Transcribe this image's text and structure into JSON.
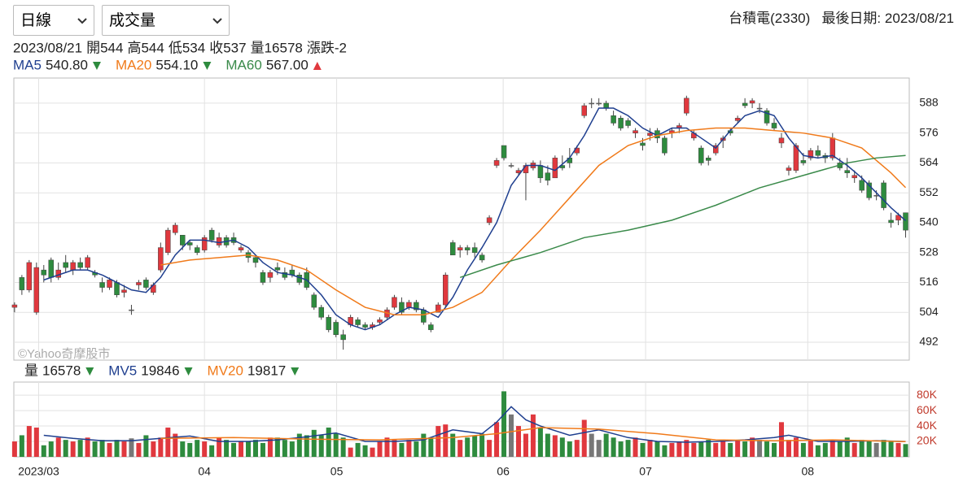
{
  "header": {
    "interval": "日線",
    "indicator": "成交量",
    "stock": "台積電(2330)",
    "last_date_label": "最後日期:",
    "last_date": "2023/08/21"
  },
  "chart_data": [
    {
      "type": "candlestick",
      "date": "2023/08/21",
      "info": [
        {
          "label": "開",
          "value": 544
        },
        {
          "label": "高",
          "value": 544
        },
        {
          "label": "低",
          "value": 534
        },
        {
          "label": "收",
          "value": 537
        },
        {
          "label": "量",
          "value": 16578
        },
        {
          "label": "漲跌",
          "value": -2
        }
      ],
      "watermark": "©Yahoo奇摩股市",
      "colors": {
        "up": "#e0383e",
        "down": "#2e8b3e",
        "flat": "#777777"
      },
      "ohlc": [
        [
          506,
          508,
          504,
          507
        ],
        [
          518,
          519,
          511,
          513
        ],
        [
          513,
          525,
          512,
          524
        ],
        [
          504,
          524,
          503,
          522
        ],
        [
          521,
          523,
          516,
          519
        ],
        [
          525,
          526,
          516,
          518
        ],
        [
          518,
          524,
          517,
          521
        ],
        [
          524,
          527,
          520,
          522
        ],
        [
          521,
          525,
          519,
          524
        ],
        [
          524,
          526,
          521,
          522
        ],
        [
          522,
          527,
          521,
          526
        ],
        [
          520,
          521,
          518,
          519
        ],
        [
          516,
          518,
          512,
          514
        ],
        [
          514,
          518,
          513,
          517
        ],
        [
          516,
          517,
          510,
          511
        ],
        [
          512,
          515,
          510,
          513
        ],
        [
          505,
          507,
          503,
          505
        ],
        [
          515,
          517,
          513,
          516
        ],
        [
          517,
          518,
          513,
          514
        ],
        [
          512,
          516,
          511,
          515
        ],
        [
          521,
          532,
          520,
          530
        ],
        [
          528,
          538,
          527,
          537
        ],
        [
          536,
          540,
          535,
          539
        ],
        [
          535,
          535,
          529,
          531
        ],
        [
          532,
          533,
          529,
          531
        ],
        [
          530,
          531,
          527,
          528
        ],
        [
          529,
          535,
          528,
          534
        ],
        [
          537,
          538,
          532,
          533
        ],
        [
          531,
          536,
          530,
          534
        ],
        [
          534,
          535,
          530,
          531
        ],
        [
          534,
          536,
          531,
          532
        ],
        [
          529,
          531,
          528,
          530
        ],
        [
          528,
          529,
          524,
          526
        ],
        [
          526,
          527,
          522,
          524
        ],
        [
          520,
          521,
          515,
          516
        ],
        [
          518,
          521,
          516,
          520
        ],
        [
          522,
          524,
          519,
          521
        ],
        [
          520,
          522,
          517,
          518
        ],
        [
          521,
          523,
          518,
          519
        ],
        [
          519,
          520,
          515,
          516
        ],
        [
          520,
          522,
          513,
          514
        ],
        [
          511,
          512,
          505,
          506
        ],
        [
          506,
          507,
          501,
          502
        ],
        [
          502,
          503,
          496,
          497
        ],
        [
          500,
          501,
          494,
          495
        ],
        [
          495,
          497,
          489,
          493
        ],
        [
          499,
          503,
          498,
          502
        ],
        [
          501,
          502,
          498,
          499
        ],
        [
          499,
          500,
          497,
          498
        ],
        [
          498,
          500,
          497,
          499
        ],
        [
          500,
          502,
          499,
          501
        ],
        [
          502,
          506,
          501,
          505
        ],
        [
          506,
          511,
          505,
          510
        ],
        [
          508,
          510,
          503,
          504
        ],
        [
          506,
          509,
          505,
          508
        ],
        [
          508,
          509,
          504,
          505
        ],
        [
          505,
          506,
          499,
          500
        ],
        [
          499,
          500,
          496,
          497
        ],
        [
          504,
          508,
          504,
          507
        ],
        [
          507,
          520,
          506,
          519
        ],
        [
          532,
          533,
          527,
          527
        ],
        [
          529,
          531,
          526,
          530
        ],
        [
          530,
          531,
          527,
          529
        ],
        [
          530,
          532,
          526,
          528
        ],
        [
          527,
          528,
          524,
          525
        ],
        [
          540,
          543,
          539,
          542
        ],
        [
          563,
          566,
          562,
          565
        ],
        [
          571,
          571,
          565,
          566
        ],
        [
          563,
          564,
          562,
          563
        ],
        [
          560,
          562,
          559,
          561
        ],
        [
          560,
          564,
          549,
          563
        ],
        [
          562,
          565,
          561,
          564
        ],
        [
          563,
          565,
          556,
          558
        ],
        [
          560,
          563,
          555,
          557
        ],
        [
          558,
          567,
          558,
          566
        ],
        [
          563,
          567,
          561,
          562
        ],
        [
          566,
          570,
          562,
          564
        ],
        [
          568,
          571,
          567,
          570
        ],
        [
          583,
          588,
          582,
          587
        ],
        [
          588,
          590,
          586,
          588
        ],
        [
          588,
          590,
          587,
          588
        ],
        [
          588,
          589,
          585,
          586
        ],
        [
          583,
          585,
          579,
          580
        ],
        [
          582,
          583,
          577,
          578
        ],
        [
          581,
          582,
          578,
          579
        ],
        [
          576,
          578,
          574,
          577
        ],
        [
          572,
          574,
          569,
          571
        ],
        [
          575,
          578,
          573,
          576
        ],
        [
          577,
          578,
          572,
          574
        ],
        [
          574,
          575,
          567,
          568
        ],
        [
          576,
          578,
          574,
          577
        ],
        [
          578,
          580,
          576,
          579
        ],
        [
          584,
          591,
          583,
          590
        ],
        [
          574,
          577,
          573,
          576
        ],
        [
          570,
          571,
          563,
          564
        ],
        [
          566,
          567,
          563,
          565
        ],
        [
          568,
          572,
          567,
          571
        ],
        [
          573,
          575,
          570,
          574
        ],
        [
          577,
          578,
          575,
          576
        ],
        [
          581,
          583,
          580,
          582
        ],
        [
          588,
          590,
          586,
          587
        ],
        [
          588,
          590,
          586,
          589
        ],
        [
          586,
          588,
          584,
          586
        ],
        [
          585,
          586,
          579,
          580
        ],
        [
          580,
          582,
          577,
          578
        ],
        [
          572,
          576,
          570,
          574
        ],
        [
          561,
          563,
          559,
          562
        ],
        [
          561,
          572,
          560,
          571
        ],
        [
          565,
          568,
          563,
          564
        ],
        [
          566,
          570,
          565,
          569
        ],
        [
          569,
          571,
          566,
          567
        ],
        [
          567,
          568,
          564,
          566
        ],
        [
          566,
          576,
          565,
          574
        ],
        [
          564,
          566,
          561,
          562
        ],
        [
          561,
          566,
          558,
          560
        ],
        [
          558,
          561,
          556,
          559
        ],
        [
          557,
          559,
          552,
          553
        ],
        [
          556,
          557,
          549,
          550
        ],
        [
          551,
          553,
          549,
          551
        ],
        [
          556,
          557,
          545,
          546
        ],
        [
          541,
          544,
          538,
          540
        ],
        [
          541,
          544,
          539,
          543
        ],
        [
          544,
          544,
          534,
          537
        ]
      ],
      "lines": [
        {
          "name": "MA5",
          "color": "#1f3f8f",
          "value": 540.8,
          "value_label": "540.80",
          "trend": "down",
          "x": [
            4,
            6,
            8,
            10,
            12,
            14,
            16,
            18,
            20,
            22,
            24,
            26,
            28,
            30,
            32,
            34,
            36,
            38,
            40,
            42,
            44,
            46,
            48,
            50,
            52,
            54,
            56,
            58,
            60,
            62,
            64,
            66,
            68,
            70,
            72,
            74,
            76,
            78,
            80,
            82,
            84,
            86,
            88,
            90,
            92,
            94,
            96,
            98,
            100,
            102,
            104,
            106,
            108,
            110,
            112,
            114,
            116,
            118,
            120,
            122
          ],
          "values": [
            517,
            519,
            521,
            521,
            519,
            516,
            513,
            512,
            518,
            527,
            533,
            533,
            532,
            533,
            530,
            524,
            520,
            519,
            517,
            511,
            503,
            499,
            497,
            499,
            503,
            506,
            505,
            502,
            510,
            521,
            530,
            540,
            555,
            563,
            563,
            561,
            566,
            575,
            586,
            586,
            583,
            578,
            575,
            578,
            578,
            574,
            570,
            577,
            583,
            585,
            583,
            574,
            567,
            566,
            567,
            563,
            558,
            552,
            546,
            540.8
          ]
        },
        {
          "name": "MA20",
          "color": "#f07a1a",
          "value": 554.1,
          "value_label": "554.10",
          "trend": "down",
          "x": [
            20,
            24,
            28,
            32,
            36,
            40,
            44,
            48,
            52,
            56,
            60,
            64,
            68,
            72,
            76,
            80,
            84,
            88,
            92,
            96,
            100,
            104,
            108,
            112,
            116,
            120,
            122
          ],
          "values": [
            523,
            525,
            526,
            527,
            525,
            521,
            513,
            506,
            503,
            503,
            506,
            512,
            525,
            537,
            550,
            563,
            571,
            575,
            577,
            578,
            578,
            577,
            576,
            574,
            570,
            560,
            554.1
          ]
        },
        {
          "name": "MA60",
          "color": "#3a8a4a",
          "value": 567,
          "value_label": "567.00",
          "trend": "up",
          "x": [
            61,
            66,
            72,
            78,
            84,
            90,
            96,
            102,
            108,
            114,
            118,
            122
          ],
          "values": [
            518,
            523,
            528,
            534,
            537,
            541,
            547,
            554,
            559,
            564,
            566,
            567
          ]
        }
      ],
      "xlim": [
        -0.1,
        122.5
      ],
      "xticks": [
        {
          "value": 3.3,
          "label": "2023/03"
        },
        {
          "value": 26,
          "label": "04"
        },
        {
          "value": 44.1,
          "label": "05"
        },
        {
          "value": 66.9,
          "label": "06"
        },
        {
          "value": 86.4,
          "label": "07"
        },
        {
          "value": 108.6,
          "label": "08"
        }
      ],
      "ylim": [
        484.8,
        598.1
      ],
      "yticks": [
        492,
        504,
        516,
        528,
        540,
        552,
        564,
        576,
        588
      ],
      "grid": true
    },
    {
      "type": "volume",
      "name": "量",
      "last": 16578,
      "trend": "down",
      "values": [
        20000,
        28000,
        40000,
        38000,
        15000,
        20000,
        25000,
        22000,
        20000,
        22000,
        25000,
        20000,
        22000,
        18000,
        22000,
        20000,
        24000,
        18000,
        28000,
        20000,
        25000,
        38000,
        30000,
        20000,
        18000,
        22000,
        20000,
        15000,
        25000,
        22000,
        18000,
        20000,
        20000,
        22000,
        18000,
        25000,
        25000,
        22000,
        20000,
        30000,
        28000,
        35000,
        28000,
        38000,
        30000,
        25000,
        12000,
        18000,
        15000,
        12000,
        20000,
        25000,
        22000,
        18000,
        22000,
        20000,
        30000,
        25000,
        40000,
        42000,
        30000,
        22000,
        25000,
        28000,
        30000,
        22000,
        45000,
        85000,
        55000,
        40000,
        30000,
        55000,
        38000,
        30000,
        28000,
        25000,
        20000,
        22000,
        48000,
        30000,
        22000,
        30000,
        25000,
        20000,
        22000,
        25000,
        18000,
        22000,
        20000,
        15000,
        18000,
        20000,
        22000,
        18000,
        20000,
        22000,
        18000,
        20000,
        18000,
        22000,
        20000,
        25000,
        22000,
        20000,
        18000,
        45000,
        22000,
        25000,
        18000,
        22000,
        15000,
        18000,
        22000,
        20000,
        25000,
        18000,
        22000,
        20000,
        18000,
        22000,
        20000,
        18000,
        16578
      ],
      "lines": [
        {
          "name": "MV5",
          "color": "#1f3f8f",
          "value": 19846,
          "trend": "down",
          "x": [
            4,
            8,
            12,
            16,
            20,
            24,
            28,
            32,
            36,
            40,
            44,
            48,
            52,
            56,
            60,
            64,
            66,
            68,
            70,
            72,
            76,
            80,
            84,
            88,
            92,
            96,
            100,
            104,
            106,
            110,
            114,
            118,
            122
          ],
          "values": [
            28000,
            24000,
            21000,
            21000,
            24000,
            27000,
            20000,
            20000,
            22000,
            26000,
            31000,
            20000,
            20000,
            22000,
            35000,
            30000,
            45000,
            65000,
            48000,
            40000,
            28000,
            35000,
            25000,
            20000,
            19000,
            20000,
            22000,
            25000,
            28000,
            20000,
            20000,
            21000,
            19846
          ]
        },
        {
          "name": "MV20",
          "color": "#f07a1a",
          "value": 19817,
          "trend": "down",
          "x": [
            20,
            30,
            40,
            50,
            60,
            66,
            72,
            80,
            88,
            96,
            104,
            112,
            122
          ],
          "values": [
            24000,
            25000,
            23000,
            22000,
            25000,
            30000,
            38000,
            36000,
            30000,
            22000,
            21000,
            22000,
            19817
          ]
        }
      ],
      "ylim": [
        0,
        97000
      ],
      "yticks": [
        {
          "value": 20000,
          "label": "20K"
        },
        {
          "value": 40000,
          "label": "40K"
        },
        {
          "value": 60000,
          "label": "60K"
        },
        {
          "value": 80000,
          "label": "80K"
        }
      ]
    }
  ]
}
